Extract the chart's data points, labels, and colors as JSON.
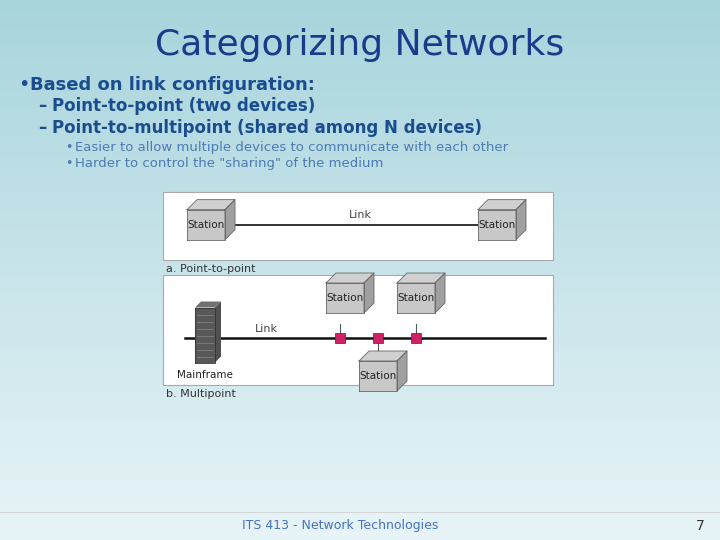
{
  "title": "Categorizing Networks",
  "title_color": "#1a3a8c",
  "title_fontsize": 26,
  "bullet1": "Based on link configuration:",
  "bullet1_color": "#1a4d8f",
  "sub1": "Point-to-point (two devices)",
  "sub2": "Point-to-multipoint (shared among N devices)",
  "sub_color": "#1a4d8f",
  "sub_sub1": "Easier to allow multiple devices to communicate with each other",
  "sub_sub2": "Harder to control the \"sharing\" of the medium",
  "sub_sub_color": "#4d7ab5",
  "footer": "ITS 413 - Network Technologies",
  "footer_color": "#4472c4",
  "page_num": "7",
  "label_a": "a. Point-to-point",
  "label_b": "b. Multipoint",
  "box_border": "#aaaaaa",
  "link_color": "#111111",
  "connector_color": "#cc2266",
  "bg_top": "#a8d4dc",
  "bg_bottom": "#e8f4f7"
}
